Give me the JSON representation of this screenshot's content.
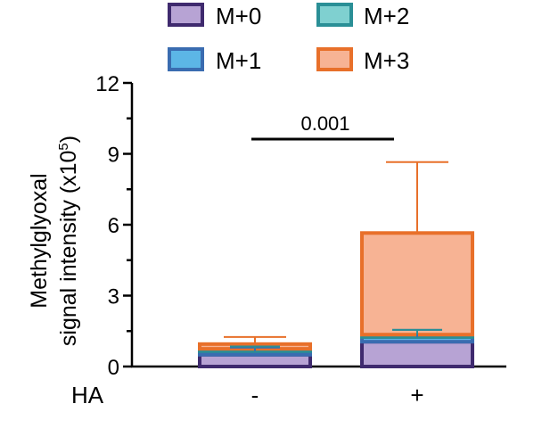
{
  "chart_data": {
    "type": "bar",
    "stacked": true,
    "ylabel_line1": "Methylglyoxal",
    "ylabel_line2": "signal intensity (x10",
    "ylabel_exp": "5",
    "ylabel_close": ")",
    "ylim": [
      0,
      12
    ],
    "yticks": [
      "0",
      "3",
      "6",
      "9",
      "12"
    ],
    "xgroup_label": "HA",
    "categories": [
      "-",
      "+"
    ],
    "legend_placement": "top",
    "series": [
      {
        "name": "M+0",
        "values": [
          0.5,
          1.05
        ],
        "errors": [
          0.0,
          0.0
        ],
        "fill": "#b7a3d4",
        "edge": "#3f2a6e"
      },
      {
        "name": "M+1",
        "values": [
          0.15,
          0.2
        ],
        "errors": [
          0.15,
          0.3
        ],
        "fill": "#5cb6e6",
        "edge": "#3a6cb0"
      },
      {
        "name": "M+2",
        "values": [
          0.1,
          0.1
        ],
        "errors": [
          0.1,
          0.2
        ],
        "fill": "#7fd0d0",
        "edge": "#2a8f96"
      },
      {
        "name": "M+3",
        "values": [
          0.2,
          4.3
        ],
        "errors": [
          0.3,
          3.0
        ],
        "fill": "#f7b394",
        "edge": "#e8702a"
      }
    ],
    "annotations": [
      {
        "text": "0.001",
        "between": [
          "-",
          "+"
        ]
      }
    ]
  }
}
